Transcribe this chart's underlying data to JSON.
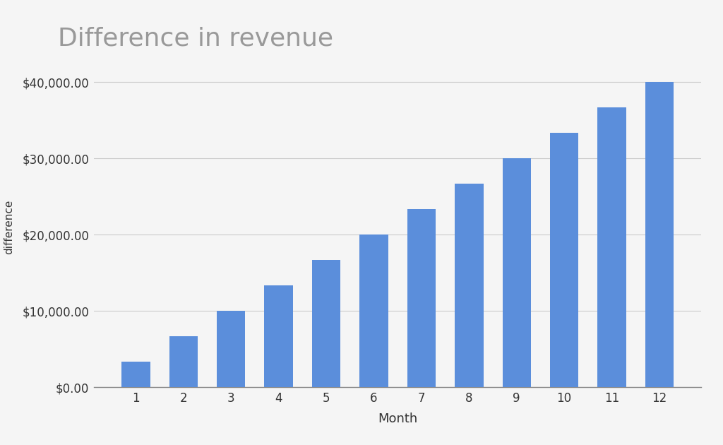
{
  "title": "Difference in revenue",
  "xlabel": "Month",
  "ylabel": "difference",
  "months": [
    1,
    2,
    3,
    4,
    5,
    6,
    7,
    8,
    9,
    10,
    11,
    12
  ],
  "values": [
    3333.33,
    6666.67,
    10000.0,
    13333.33,
    16666.67,
    20000.0,
    23333.33,
    26666.67,
    30000.0,
    33333.33,
    36666.67,
    40000.0
  ],
  "bar_color": "#5b8edb",
  "background_color": "#f5f5f5",
  "title_color": "#999999",
  "title_fontsize": 26,
  "tick_label_color": "#333333",
  "axis_label_color": "#333333",
  "grid_color": "#cccccc",
  "ylim": [
    0,
    42000
  ],
  "yticks": [
    0,
    10000,
    20000,
    30000,
    40000
  ]
}
